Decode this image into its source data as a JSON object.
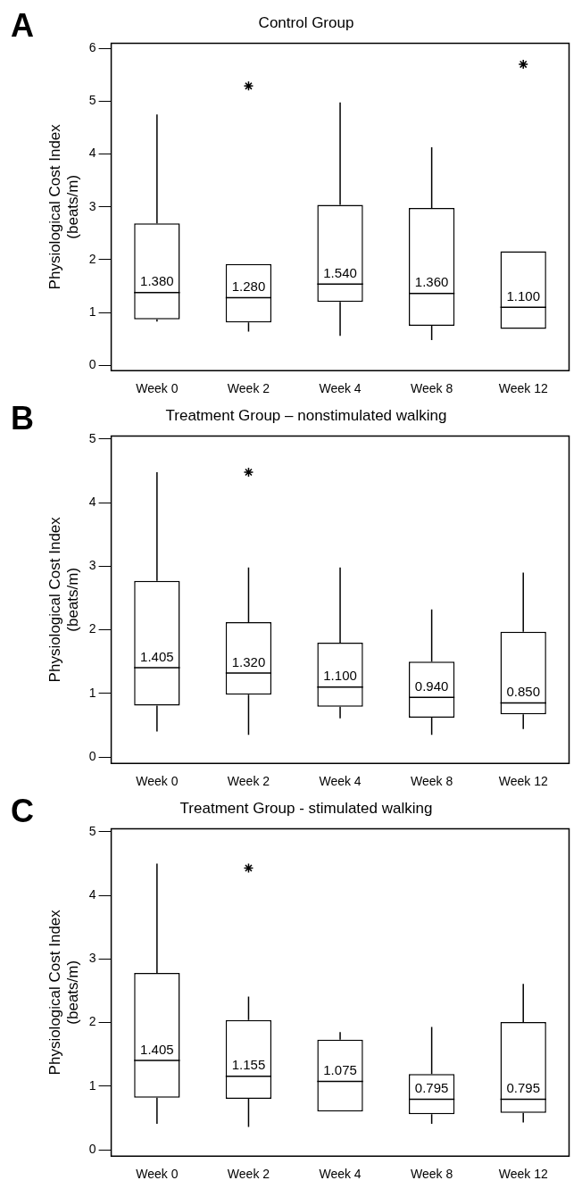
{
  "chart_data": [
    {
      "type": "box",
      "title": "Control Group",
      "annotations": [
        "A"
      ],
      "ylabel": "Physiological Cost Index\n(beats/m)",
      "categories": [
        "Week 0",
        "Week 2",
        "Week 4",
        "Week 8",
        "Week 12"
      ],
      "ylim": [
        -0.1,
        6.1
      ],
      "yticks": [
        0,
        1,
        2,
        3,
        4,
        5,
        6
      ],
      "boxes": [
        {
          "low": 0.83,
          "q1": 0.87,
          "median": 1.38,
          "q3": 2.69,
          "high": 4.75
        },
        {
          "low": 0.64,
          "q1": 0.81,
          "median": 1.28,
          "q3": 1.92,
          "high": 1.92,
          "outliers": [
            5.29
          ]
        },
        {
          "low": 0.56,
          "q1": 1.2,
          "median": 1.54,
          "q3": 3.04,
          "high": 4.98
        },
        {
          "low": 0.48,
          "q1": 0.75,
          "median": 1.36,
          "q3": 2.98,
          "high": 4.13
        },
        {
          "low": 0.69,
          "q1": 0.69,
          "median": 1.1,
          "q3": 2.16,
          "high": 2.16,
          "outliers": [
            5.7
          ]
        }
      ],
      "value_labels": [
        "1.380",
        "1.280",
        "1.540",
        "1.360",
        "1.100"
      ]
    },
    {
      "type": "box",
      "title": "Treatment Group – nonstimulated walking",
      "annotations": [
        "B"
      ],
      "ylabel": "Physiological Cost Index\n(beats/m)",
      "categories": [
        "Week 0",
        "Week 2",
        "Week 4",
        "Week 8",
        "Week 12"
      ],
      "ylim": [
        -0.1,
        5.05
      ],
      "yticks": [
        0,
        1,
        2,
        3,
        4,
        5
      ],
      "boxes": [
        {
          "low": 0.4,
          "q1": 0.81,
          "median": 1.405,
          "q3": 2.77,
          "high": 4.48
        },
        {
          "low": 0.35,
          "q1": 0.98,
          "median": 1.32,
          "q3": 2.12,
          "high": 2.98,
          "outliers": [
            4.48
          ]
        },
        {
          "low": 0.61,
          "q1": 0.79,
          "median": 1.1,
          "q3": 1.8,
          "high": 2.98
        },
        {
          "low": 0.35,
          "q1": 0.62,
          "median": 0.94,
          "q3": 1.5,
          "high": 2.32
        },
        {
          "low": 0.44,
          "q1": 0.67,
          "median": 0.85,
          "q3": 1.97,
          "high": 2.9
        }
      ],
      "value_labels": [
        "1.405",
        "1.320",
        "1.100",
        "0.940",
        "0.850"
      ]
    },
    {
      "type": "box",
      "title": "Treatment Group - stimulated walking",
      "annotations": [
        "C"
      ],
      "ylabel": "Physiological Cost Index\n(beats/m)",
      "categories": [
        "Week 0",
        "Week 2",
        "Week 4",
        "Week 8",
        "Week 12"
      ],
      "ylim": [
        -0.1,
        5.05
      ],
      "yticks": [
        0,
        1,
        2,
        3,
        4,
        5
      ],
      "boxes": [
        {
          "low": 0.41,
          "q1": 0.82,
          "median": 1.405,
          "q3": 2.78,
          "high": 4.5
        },
        {
          "low": 0.36,
          "q1": 0.8,
          "median": 1.155,
          "q3": 2.04,
          "high": 2.41,
          "outliers": [
            4.43
          ]
        },
        {
          "low": 0.6,
          "q1": 0.6,
          "median": 1.075,
          "q3": 1.73,
          "high": 1.85
        },
        {
          "low": 0.41,
          "q1": 0.56,
          "median": 0.795,
          "q3": 1.19,
          "high": 1.93
        },
        {
          "low": 0.43,
          "q1": 0.58,
          "median": 0.795,
          "q3": 2.01,
          "high": 2.61
        }
      ],
      "value_labels": [
        "1.405",
        "1.155",
        "1.075",
        "0.795",
        "0.795"
      ]
    }
  ]
}
